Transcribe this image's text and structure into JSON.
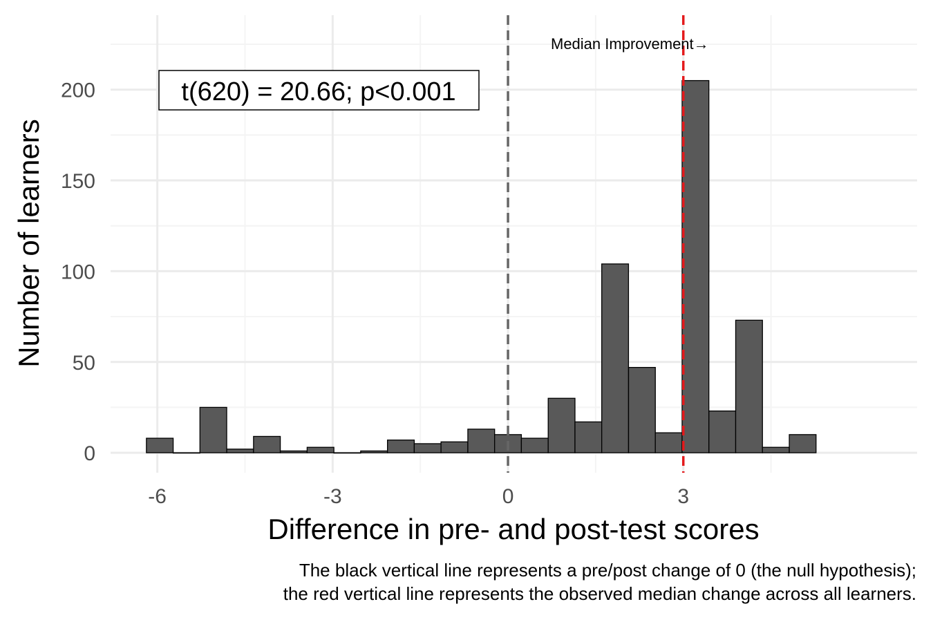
{
  "chart_data": {
    "type": "bar",
    "title": "",
    "xlabel": "Difference in pre- and post-test scores",
    "ylabel": "Number of learners",
    "xlim": [
      -6.8,
      7.0
    ],
    "ylim": [
      -11,
      241
    ],
    "x_ticks": [
      -6,
      -3,
      0,
      3
    ],
    "x_tick_labels": [
      "-6",
      "-3",
      "0",
      "3"
    ],
    "y_ticks": [
      0,
      50,
      100,
      150,
      200
    ],
    "y_tick_labels": [
      "0",
      "50",
      "100",
      "150",
      "200"
    ],
    "grid": true,
    "bin_width": 0.4583,
    "bins": [
      {
        "center": -5.958,
        "count": 8
      },
      {
        "center": -5.5,
        "count": 0
      },
      {
        "center": -5.042,
        "count": 25
      },
      {
        "center": -4.583,
        "count": 2
      },
      {
        "center": -4.125,
        "count": 9
      },
      {
        "center": -3.667,
        "count": 1
      },
      {
        "center": -3.208,
        "count": 3
      },
      {
        "center": -2.75,
        "count": 0
      },
      {
        "center": -2.292,
        "count": 1
      },
      {
        "center": -1.833,
        "count": 7
      },
      {
        "center": -1.375,
        "count": 5
      },
      {
        "center": -0.917,
        "count": 6
      },
      {
        "center": -0.458,
        "count": 13
      },
      {
        "center": 0.0,
        "count": 10
      },
      {
        "center": 0.458,
        "count": 8
      },
      {
        "center": 0.917,
        "count": 30
      },
      {
        "center": 1.375,
        "count": 17
      },
      {
        "center": 1.833,
        "count": 104
      },
      {
        "center": 2.292,
        "count": 47
      },
      {
        "center": 2.75,
        "count": 11
      },
      {
        "center": 3.208,
        "count": 205
      },
      {
        "center": 3.667,
        "count": 23
      },
      {
        "center": 4.125,
        "count": 73
      },
      {
        "center": 4.583,
        "count": 3
      },
      {
        "center": 5.042,
        "count": 10
      }
    ],
    "reference_lines": [
      {
        "name": "null-hypothesis",
        "x": 0,
        "color": "#666666",
        "style": "dashed"
      },
      {
        "name": "median",
        "x": 3,
        "color": "#e31a1c",
        "style": "dashed"
      }
    ],
    "annotations": {
      "stat_box": "t(620) = 20.66; p<0.001",
      "median_label": "Median Improvement→"
    },
    "caption_lines": [
      "The black vertical line represents a pre/post change of 0 (the null hypothesis);",
      "the red vertical line represents the observed median change across all learners."
    ],
    "colors": {
      "bar_fill": "#595959",
      "bar_stroke": "#000000",
      "grid_major": "#ebebeb",
      "grid_minor": "#f4f4f4",
      "tick_text": "#4d4d4d"
    }
  }
}
